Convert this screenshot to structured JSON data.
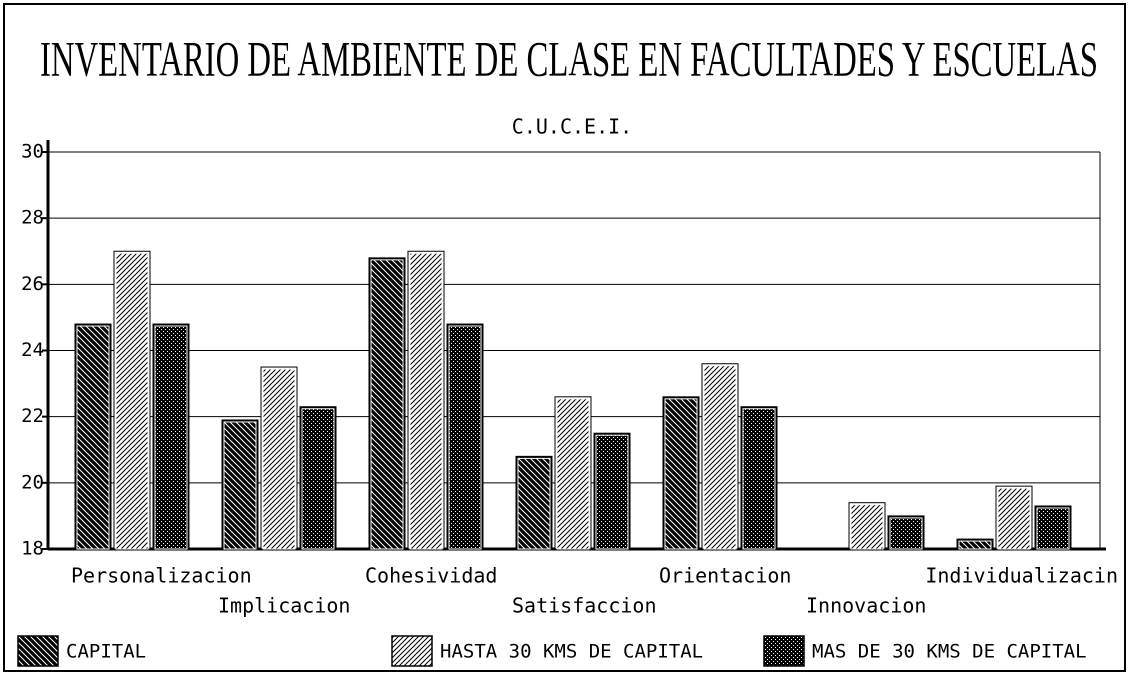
{
  "chart_data": {
    "type": "bar",
    "title": "INVENTARIO DE AMBIENTE DE CLASE EN FACULTADES Y ESCUELAS",
    "subtitle": "C.U.C.E.I.",
    "categories": [
      "Personalizacion",
      "Implicacion",
      "Cohesividad",
      "Satisfaccion",
      "Orientacion",
      "Innovacion",
      "Individualizacin"
    ],
    "series": [
      {
        "name": "CAPITAL",
        "color": "#000000",
        "values": [
          24.8,
          21.9,
          26.8,
          20.8,
          22.6,
          18.0,
          18.3
        ]
      },
      {
        "name": "HASTA 30 KMS DE CAPITAL",
        "color": "#ffffff",
        "values": [
          27.0,
          23.5,
          27.0,
          22.6,
          23.6,
          19.4,
          19.9
        ]
      },
      {
        "name": "MAS DE 30 KMS DE CAPITAL",
        "color": "#000000",
        "values": [
          24.8,
          22.3,
          24.8,
          21.5,
          22.3,
          19.0,
          19.3
        ]
      }
    ],
    "ylim": [
      18,
      30
    ],
    "yticks": [
      18,
      20,
      22,
      24,
      26,
      28,
      30
    ],
    "grid": true,
    "legend": "bottom"
  }
}
